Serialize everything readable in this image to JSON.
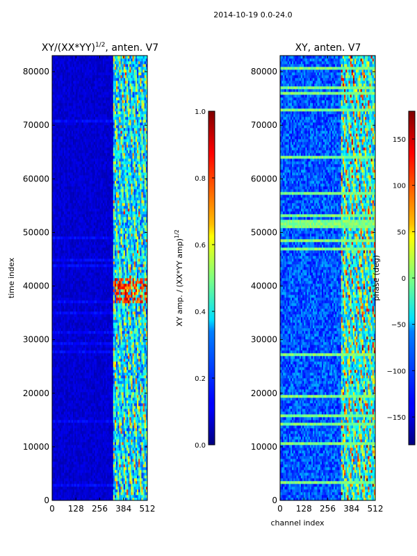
{
  "suptitle": "2014-10-19 0.0-24.0",
  "chart_data": [
    {
      "type": "heatmap",
      "title": "XY/(XX*YY)",
      "title_exponent": "1/2",
      "title_suffix": ", anten. V7",
      "xlabel": "",
      "ylabel": "time index",
      "x_ticks": [
        "0",
        "128",
        "256",
        "384",
        "512"
      ],
      "y_ticks": [
        "0",
        "10000",
        "20000",
        "30000",
        "40000",
        "50000",
        "60000",
        "70000",
        "80000"
      ],
      "xlim": [
        0,
        512
      ],
      "ylim": [
        0,
        83000
      ],
      "colorbar": {
        "range": [
          0.0,
          1.0
        ],
        "ticks": [
          "0.0",
          "0.2",
          "0.4",
          "0.6",
          "0.8",
          "1.0"
        ],
        "label": "XY amp. / (XX*YY amp)",
        "label_exponent": "1/2"
      },
      "colormap": "jet",
      "description_values": {
        "low_channel_level": 0.08,
        "high_channel_band": [
          330,
          512
        ],
        "high_channel_level": 0.45
      }
    },
    {
      "type": "heatmap",
      "title": "XY, anten. V7",
      "xlabel": "channel index",
      "ylabel": "",
      "x_ticks": [
        "0",
        "128",
        "256",
        "384",
        "512"
      ],
      "y_ticks": [
        "0",
        "10000",
        "20000",
        "30000",
        "40000",
        "50000",
        "60000",
        "70000",
        "80000"
      ],
      "xlim": [
        0,
        512
      ],
      "ylim": [
        0,
        83000
      ],
      "colorbar": {
        "range": [
          -180,
          180
        ],
        "ticks": [
          "−150",
          "−100",
          "−50",
          "0",
          "50",
          "100",
          "150"
        ],
        "label": "phase (deg)"
      },
      "colormap": "jet"
    }
  ],
  "colors": {
    "jet_low": "#00007f",
    "jet_mid": "#7fff7f",
    "jet_high": "#7f0000"
  }
}
